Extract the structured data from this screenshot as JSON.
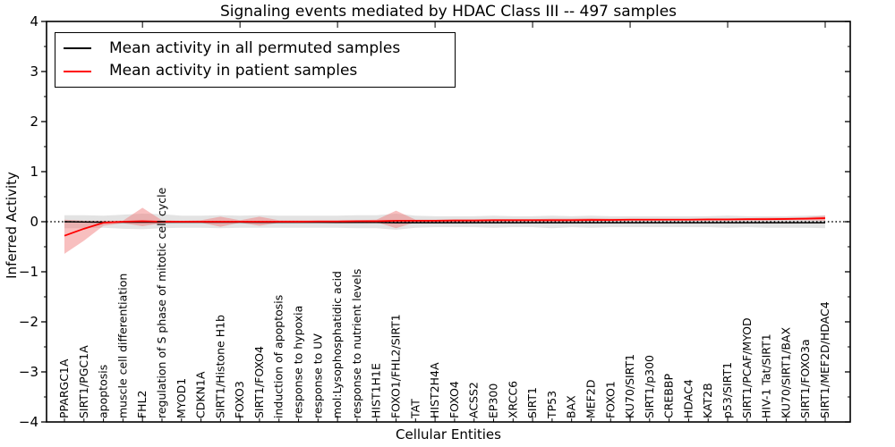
{
  "title": "Signaling events mediated by HDAC Class III -- 497 samples",
  "axes": {
    "xlabel": "Cellular Entities",
    "ylabel": "Inferred Activity",
    "ylim": [
      -4,
      4
    ],
    "yticks": [
      -4,
      -3,
      -2,
      -1,
      0,
      1,
      2,
      3,
      4
    ]
  },
  "legend": {
    "items": [
      {
        "label": "Mean activity in all permuted samples",
        "color": "#000000"
      },
      {
        "label": "Mean activity in patient samples",
        "color": "#ff0000"
      }
    ]
  },
  "colors": {
    "permuted_line": "#000000",
    "patient_line": "#ff0000",
    "permuted_band": "#d9d9d9",
    "patient_band": "#f07070",
    "frame": "#000000"
  },
  "chart_data": {
    "type": "line",
    "title": "Signaling events mediated by HDAC Class III -- 497 samples",
    "xlabel": "Cellular Entities",
    "ylabel": "Inferred Activity",
    "ylim": [
      -4,
      4
    ],
    "grid": false,
    "legend_position": "upper left",
    "zero_line": true,
    "categories": [
      "PPARGC1A",
      "SIRT1/PGC1A",
      "apoptosis",
      "muscle cell differentiation",
      "FHL2",
      "regulation of S phase of mitotic cell cycle",
      "MYOD1",
      "CDKN1A",
      "SIRT1/Histone H1b",
      "FOXO3",
      "SIRT1/FOXO4",
      "induction of apoptosis",
      "response to hypoxia",
      "response to UV",
      "mol:Lysophosphatidic acid",
      "response to nutrient levels",
      "HIST1H1E",
      "FOXO1/FHL2/SIRT1",
      "TAT",
      "HIST2H4A",
      "FOXO4",
      "ACSS2",
      "EP300",
      "XRCC6",
      "SIRT1",
      "TP53",
      "BAX",
      "MEF2D",
      "FOXO1",
      "KU70/SIRT1",
      "SIRT1/p300",
      "CREBBP",
      "HDAC4",
      "KAT2B",
      "p53/SIRT1",
      "SIRT1/PCAF/MYOD",
      "HIV-1 Tat/SIRT1",
      "KU70/SIRT1/BAX",
      "SIRT1/FOXO3a",
      "SIRT1/MEF2D/HDAC4"
    ],
    "series": [
      {
        "name": "Mean activity in all permuted samples",
        "color": "#000000",
        "values": [
          0,
          -0.005,
          -0.01,
          -0.01,
          -0.01,
          -0.01,
          -0.01,
          -0.01,
          -0.01,
          -0.01,
          -0.012,
          -0.012,
          -0.013,
          -0.013,
          -0.014,
          -0.015,
          -0.015,
          -0.02,
          -0.02,
          -0.02,
          -0.02,
          -0.02,
          -0.02,
          -0.02,
          -0.02,
          -0.02,
          -0.02,
          -0.02,
          -0.02,
          -0.02,
          -0.02,
          -0.02,
          -0.02,
          -0.02,
          -0.02,
          -0.02,
          -0.02,
          -0.02,
          -0.02,
          -0.02
        ]
      },
      {
        "name": "Mean activity in patient samples",
        "color": "#ff0000",
        "values": [
          -0.28,
          -0.14,
          -0.02,
          0,
          0.01,
          0,
          0,
          0,
          0,
          0,
          0,
          0,
          0,
          0.005,
          0.005,
          0.01,
          0.01,
          0.02,
          0.02,
          0.02,
          0.025,
          0.025,
          0.03,
          0.03,
          0.03,
          0.03,
          0.03,
          0.035,
          0.035,
          0.04,
          0.04,
          0.04,
          0.04,
          0.045,
          0.045,
          0.05,
          0.05,
          0.055,
          0.06,
          0.07
        ]
      }
    ],
    "bands": [
      {
        "name": "permuted samples range",
        "color": "#d9d9d9",
        "opacity": 0.75,
        "upper": [
          0.13,
          0.13,
          0.12,
          0.14,
          0.16,
          0.15,
          0.12,
          0.12,
          0.13,
          0.12,
          0.13,
          0.12,
          0.12,
          0.12,
          0.12,
          0.13,
          0.13,
          0.16,
          0.12,
          0.11,
          0.11,
          0.11,
          0.12,
          0.11,
          0.11,
          0.12,
          0.11,
          0.12,
          0.11,
          0.11,
          0.11,
          0.11,
          0.11,
          0.11,
          0.12,
          0.11,
          0.11,
          0.11,
          0.12,
          0.13
        ],
        "lower": [
          -0.13,
          -0.13,
          -0.12,
          -0.14,
          -0.15,
          -0.13,
          -0.12,
          -0.12,
          -0.13,
          -0.12,
          -0.12,
          -0.12,
          -0.12,
          -0.12,
          -0.12,
          -0.13,
          -0.13,
          -0.16,
          -0.12,
          -0.11,
          -0.11,
          -0.11,
          -0.12,
          -0.11,
          -0.11,
          -0.13,
          -0.11,
          -0.12,
          -0.11,
          -0.11,
          -0.11,
          -0.11,
          -0.11,
          -0.11,
          -0.12,
          -0.11,
          -0.12,
          -0.12,
          -0.12,
          -0.13
        ]
      },
      {
        "name": "patient samples range",
        "color": "#f07070",
        "opacity": 0.45,
        "upper": [
          0.04,
          0.02,
          0.02,
          0.02,
          0.28,
          0.03,
          0.02,
          0.03,
          0.1,
          0.03,
          0.1,
          0.03,
          0.03,
          0.03,
          0.03,
          0.03,
          0.04,
          0.22,
          0.04,
          0.04,
          0.05,
          0.05,
          0.05,
          0.05,
          0.05,
          0.06,
          0.06,
          0.07,
          0.06,
          0.06,
          0.06,
          0.06,
          0.06,
          0.07,
          0.07,
          0.07,
          0.08,
          0.08,
          0.09,
          0.12
        ],
        "lower": [
          -0.64,
          -0.38,
          -0.08,
          -0.03,
          -0.09,
          -0.03,
          -0.02,
          -0.02,
          -0.1,
          -0.02,
          -0.08,
          -0.02,
          -0.02,
          -0.02,
          -0.01,
          -0.01,
          -0.01,
          -0.13,
          -0.01,
          -0.005,
          0,
          0,
          0.005,
          0.005,
          0.01,
          0.005,
          0.01,
          0.01,
          0.01,
          0.015,
          0.015,
          0.02,
          0.02,
          0.02,
          0.02,
          0.025,
          0.025,
          0.03,
          0.03,
          0.02
        ]
      }
    ]
  }
}
